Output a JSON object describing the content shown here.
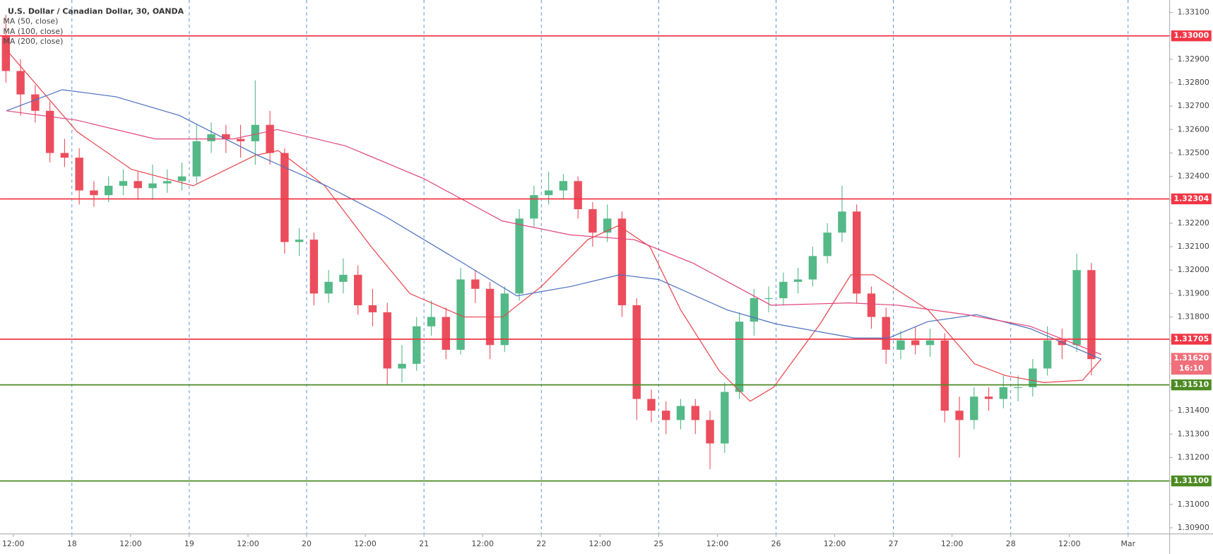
{
  "chart_data": {
    "type": "candlestick",
    "title": "U.S. Dollar / Canadian Dollar, 30, OANDA",
    "xlim": [
      9.3,
      248.5
    ],
    "ylim": [
      1.30874,
      1.33153
    ],
    "xticks": [
      {
        "value": 12,
        "label": "12:00"
      },
      {
        "value": 24,
        "label": "18"
      },
      {
        "value": 36,
        "label": "12:00"
      },
      {
        "value": 48,
        "label": "19"
      },
      {
        "value": 60,
        "label": "12:00"
      },
      {
        "value": 72,
        "label": "20"
      },
      {
        "value": 84,
        "label": "12:00"
      },
      {
        "value": 96,
        "label": "21"
      },
      {
        "value": 108,
        "label": "12:00"
      },
      {
        "value": 120,
        "label": "22"
      },
      {
        "value": 132,
        "label": "12:00"
      },
      {
        "value": 144,
        "label": "25"
      },
      {
        "value": 156,
        "label": "12:00"
      },
      {
        "value": 168,
        "label": "26"
      },
      {
        "value": 180,
        "label": "12:00"
      },
      {
        "value": 192,
        "label": "27"
      },
      {
        "value": 204,
        "label": "12:00"
      },
      {
        "value": 216,
        "label": "28"
      },
      {
        "value": 228,
        "label": "12:00"
      },
      {
        "value": 240,
        "label": "Mar"
      }
    ],
    "day_grid": [
      24,
      48,
      72,
      96,
      120,
      144,
      168,
      192,
      216,
      240
    ],
    "yticks": [
      {
        "value": 1.331,
        "label": "1.33100"
      },
      {
        "value": 1.33,
        "label": "1.33000"
      },
      {
        "value": 1.329,
        "label": "1.32900"
      },
      {
        "value": 1.328,
        "label": "1.32800"
      },
      {
        "value": 1.327,
        "label": "1.32700"
      },
      {
        "value": 1.326,
        "label": "1.32600"
      },
      {
        "value": 1.325,
        "label": "1.32500"
      },
      {
        "value": 1.324,
        "label": "1.32400"
      },
      {
        "value": 1.323,
        "label": "1.32300"
      },
      {
        "value": 1.322,
        "label": "1.32200"
      },
      {
        "value": 1.321,
        "label": "1.32100"
      },
      {
        "value": 1.32,
        "label": "1.32000"
      },
      {
        "value": 1.319,
        "label": "1.31900"
      },
      {
        "value": 1.318,
        "label": "1.31800"
      },
      {
        "value": 1.317,
        "label": "1.31700"
      },
      {
        "value": 1.316,
        "label": "1.31600"
      },
      {
        "value": 1.315,
        "label": "1.31500"
      },
      {
        "value": 1.314,
        "label": "1.31400"
      },
      {
        "value": 1.313,
        "label": "1.31300"
      },
      {
        "value": 1.312,
        "label": "1.31200"
      },
      {
        "value": 1.311,
        "label": "1.31100"
      },
      {
        "value": 1.31,
        "label": "1.31000"
      },
      {
        "value": 1.309,
        "label": "1.30900"
      }
    ],
    "up_color": "#53b987",
    "down_color": "#eb4d5c",
    "candles": {
      "x": [
        10.5,
        13.5,
        16.5,
        19.5,
        22.5,
        25.5,
        28.5,
        31.5,
        34.5,
        37.5,
        40.5,
        43.5,
        46.5,
        49.5,
        52.5,
        55.5,
        58.5,
        61.5,
        64.5,
        67.5,
        70.5,
        73.5,
        76.5,
        79.5,
        82.5,
        85.5,
        88.5,
        91.5,
        94.5,
        97.5,
        100.5,
        103.5,
        106.5,
        109.5,
        112.5,
        115.5,
        118.5,
        121.5,
        124.5,
        127.5,
        130.5,
        133.5,
        136.5,
        139.5,
        142.5,
        145.5,
        148.5,
        151.5,
        154.5,
        157.5,
        160.5,
        163.5,
        166.5,
        169.5,
        172.5,
        175.5,
        178.5,
        181.5,
        184.5,
        187.5,
        190.5,
        193.5,
        196.5,
        199.5,
        202.5,
        205.5,
        208.5,
        211.5,
        214.5,
        217.5,
        220.5,
        223.5,
        226.5,
        229.5,
        232.5
      ],
      "open": [
        1.33,
        1.3285,
        1.3275,
        1.3268,
        1.325,
        1.3248,
        1.3234,
        1.3232,
        1.3236,
        1.3238,
        1.3235,
        1.3237,
        1.3238,
        1.324,
        1.3255,
        1.3258,
        1.3256,
        1.3255,
        1.3262,
        1.325,
        1.3212,
        1.3213,
        1.319,
        1.3195,
        1.3198,
        1.3185,
        1.3182,
        1.3158,
        1.316,
        1.3176,
        1.318,
        1.3166,
        1.3196,
        1.3192,
        1.3168,
        1.319,
        1.3222,
        1.3232,
        1.3234,
        1.3238,
        1.3226,
        1.3216,
        1.3222,
        1.3185,
        1.3145,
        1.314,
        1.3136,
        1.3142,
        1.3136,
        1.3126,
        1.3148,
        1.3178,
        1.3188,
        1.3188,
        1.3195,
        1.3196,
        1.3206,
        1.3216,
        1.3225,
        1.319,
        1.318,
        1.3166,
        1.317,
        1.3168,
        1.317,
        1.314,
        1.3136,
        1.3146,
        1.3145,
        1.315,
        1.315,
        1.3158,
        1.317,
        1.3168,
        1.32
      ],
      "high": [
        1.3309,
        1.329,
        1.3279,
        1.3272,
        1.3256,
        1.3252,
        1.3238,
        1.324,
        1.3243,
        1.3242,
        1.3245,
        1.3243,
        1.3246,
        1.3262,
        1.3263,
        1.3262,
        1.3262,
        1.3281,
        1.3268,
        1.3252,
        1.3218,
        1.3216,
        1.32,
        1.3205,
        1.3202,
        1.3192,
        1.3186,
        1.3168,
        1.318,
        1.3187,
        1.3184,
        1.3201,
        1.32,
        1.3195,
        1.3193,
        1.3226,
        1.3236,
        1.3242,
        1.3241,
        1.324,
        1.3229,
        1.3228,
        1.3225,
        1.3188,
        1.3149,
        1.3144,
        1.3145,
        1.3145,
        1.314,
        1.3152,
        1.3182,
        1.3192,
        1.3193,
        1.3199,
        1.3201,
        1.321,
        1.322,
        1.3236,
        1.3228,
        1.3193,
        1.3184,
        1.3174,
        1.3176,
        1.3175,
        1.3173,
        1.3146,
        1.315,
        1.315,
        1.3155,
        1.3155,
        1.3162,
        1.3176,
        1.3175,
        1.3207,
        1.3203
      ],
      "low": [
        1.328,
        1.3266,
        1.3263,
        1.3246,
        1.3244,
        1.3228,
        1.3227,
        1.3229,
        1.3232,
        1.323,
        1.323,
        1.3233,
        1.3234,
        1.3237,
        1.325,
        1.325,
        1.3248,
        1.3245,
        1.3245,
        1.3207,
        1.3206,
        1.3185,
        1.3186,
        1.319,
        1.3181,
        1.3176,
        1.3151,
        1.3152,
        1.3157,
        1.3172,
        1.3162,
        1.3164,
        1.3186,
        1.3162,
        1.3165,
        1.3187,
        1.3218,
        1.3228,
        1.323,
        1.3222,
        1.321,
        1.3212,
        1.318,
        1.3136,
        1.3135,
        1.313,
        1.3132,
        1.313,
        1.3115,
        1.3122,
        1.3145,
        1.3172,
        1.3182,
        1.3185,
        1.319,
        1.3193,
        1.3203,
        1.3212,
        1.3186,
        1.3175,
        1.316,
        1.3162,
        1.3164,
        1.3163,
        1.3135,
        1.312,
        1.3132,
        1.314,
        1.3141,
        1.3144,
        1.3146,
        1.3155,
        1.3162,
        1.3165,
        1.3155
      ],
      "close": [
        1.3285,
        1.3275,
        1.3268,
        1.325,
        1.3248,
        1.3234,
        1.3232,
        1.3236,
        1.3238,
        1.3235,
        1.3237,
        1.3238,
        1.324,
        1.3255,
        1.3258,
        1.3256,
        1.3255,
        1.3262,
        1.325,
        1.3212,
        1.3213,
        1.319,
        1.3195,
        1.3198,
        1.3185,
        1.3182,
        1.3158,
        1.316,
        1.3176,
        1.318,
        1.3166,
        1.3196,
        1.3192,
        1.3168,
        1.319,
        1.3222,
        1.3232,
        1.3234,
        1.3238,
        1.3226,
        1.3216,
        1.3222,
        1.3185,
        1.3145,
        1.314,
        1.3136,
        1.3142,
        1.3136,
        1.3126,
        1.3148,
        1.3178,
        1.3188,
        1.3188,
        1.3195,
        1.3196,
        1.3206,
        1.3216,
        1.3225,
        1.319,
        1.318,
        1.3166,
        1.317,
        1.3168,
        1.317,
        1.314,
        1.3136,
        1.3146,
        1.3145,
        1.315,
        1.315,
        1.3158,
        1.317,
        1.3168,
        1.32,
        1.3162
      ]
    },
    "series": [
      {
        "name": "MA (50, close)",
        "color": "#e8434a",
        "x": [
          10.6,
          25.1,
          36.2,
          48.8,
          61.5,
          66.2,
          75.7,
          85.2,
          93.1,
          104.2,
          112.1,
          120,
          129.5,
          135.8,
          142.2,
          148.5,
          156.4,
          162.7,
          167.5,
          177,
          183.3,
          188,
          199.1,
          208.6,
          214.9,
          222.8,
          230.7,
          234.5
        ],
        "values": [
          1.3294,
          1.3259,
          1.3243,
          1.3236,
          1.3249,
          1.3251,
          1.3236,
          1.321,
          1.319,
          1.318,
          1.318,
          1.3193,
          1.3213,
          1.3219,
          1.321,
          1.3183,
          1.3157,
          1.3144,
          1.315,
          1.3177,
          1.3198,
          1.3198,
          1.3183,
          1.316,
          1.3155,
          1.3152,
          1.3153,
          1.3162
        ]
      },
      {
        "name": "MA (100, close)",
        "color": "#4a6fbf",
        "x": [
          10.6,
          22,
          33,
          46,
          62,
          76,
          88,
          104,
          115,
          126,
          136,
          144,
          158,
          168,
          184,
          191,
          199,
          209,
          220,
          234.5
        ],
        "values": [
          1.3268,
          1.3277,
          1.3274,
          1.3266,
          1.3249,
          1.3236,
          1.3223,
          1.3203,
          1.3189,
          1.3193,
          1.3198,
          1.3196,
          1.3183,
          1.3177,
          1.3171,
          1.3171,
          1.3178,
          1.3181,
          1.3175,
          1.3162
        ]
      },
      {
        "name": "MA (200, close)",
        "color": "#e0457b",
        "x": [
          10.6,
          25,
          41,
          57,
          66,
          80,
          96,
          112,
          126,
          139,
          151,
          167,
          183,
          193,
          207,
          220,
          234.5
        ],
        "values": [
          1.3268,
          1.3264,
          1.3256,
          1.3256,
          1.326,
          1.3253,
          1.3239,
          1.3221,
          1.3215,
          1.3213,
          1.3203,
          1.3185,
          1.3186,
          1.3185,
          1.3181,
          1.3176,
          1.3164
        ]
      }
    ],
    "levels": [
      {
        "value": 1.33,
        "label": "1.33000",
        "color": "#f23645"
      },
      {
        "value": 1.32304,
        "label": "1.32304",
        "color": "#f23645"
      },
      {
        "value": 1.31705,
        "label": "1.31705",
        "color": "#f23645"
      },
      {
        "value": 1.3151,
        "label": "1.31510",
        "color": "#4c8a22"
      },
      {
        "value": 1.311,
        "label": "1.31100",
        "color": "#4c8a22"
      }
    ],
    "last_price": {
      "value": 1.3162,
      "label": "1.31620",
      "countdown": "16:10",
      "color": "#ef6f7a"
    }
  }
}
